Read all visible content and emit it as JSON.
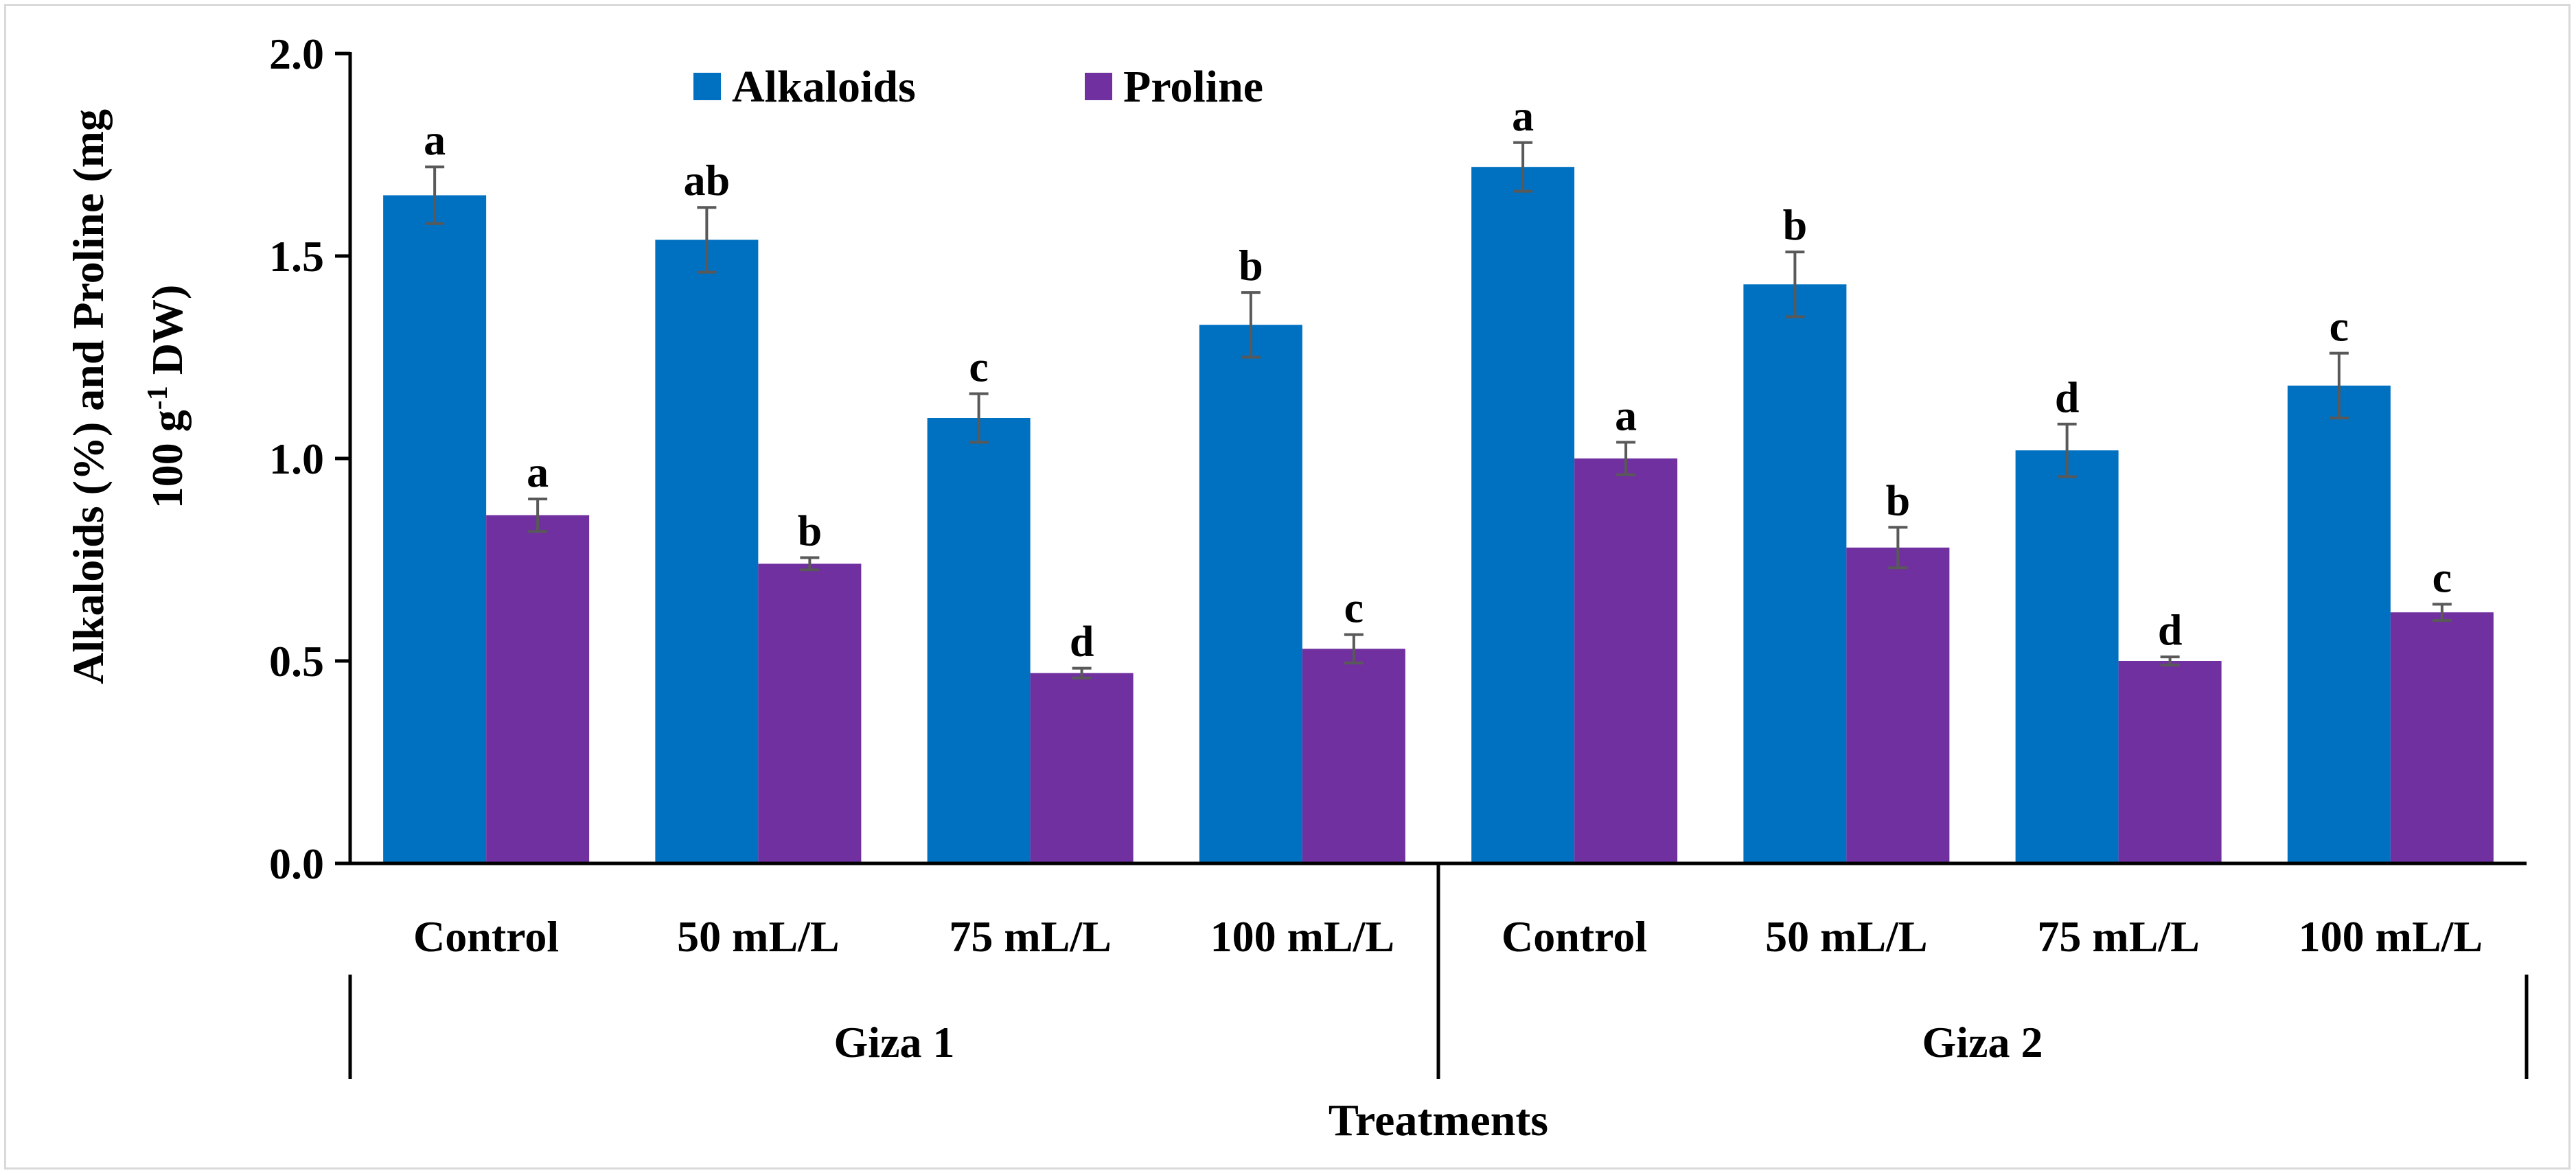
{
  "colors": {
    "alkaloids": "#0070c0",
    "proline": "#7030a0",
    "axis": "#000000",
    "error_bar": "#595959"
  },
  "chart_data": {
    "type": "bar",
    "title": "",
    "ylabel_line1": "Alkaloids  (%) and Proline (mg",
    "ylabel_line2_prefix": "100 g",
    "ylabel_line2_sup": "-1",
    "ylabel_line2_suffix": " DW)",
    "xlabel": "Treatments",
    "ylim": [
      0,
      2.0
    ],
    "yticks": [
      0.0,
      0.5,
      1.0,
      1.5,
      2.0
    ],
    "ytick_labels": [
      "0.0",
      "0.5",
      "1.0",
      "1.5",
      "2.0"
    ],
    "groups": [
      {
        "label": "Giza 1",
        "categories": [
          "Control",
          "50 mL/L",
          "75 mL/L",
          "100 mL/L"
        ]
      },
      {
        "label": "Giza 2",
        "categories": [
          "Control",
          "50 mL/L",
          "75 mL/L",
          "100 mL/L"
        ]
      }
    ],
    "series": [
      {
        "name": "Alkaloids",
        "values": [
          1.65,
          1.54,
          1.1,
          1.33,
          1.72,
          1.43,
          1.02,
          1.18
        ],
        "errors": [
          0.07,
          0.08,
          0.06,
          0.08,
          0.06,
          0.08,
          0.065,
          0.08
        ],
        "labels": [
          "a",
          "ab",
          "c",
          "b",
          "a",
          "b",
          "d",
          "c"
        ]
      },
      {
        "name": "Proline",
        "values": [
          0.86,
          0.74,
          0.47,
          0.53,
          1.0,
          0.78,
          0.5,
          0.62
        ],
        "errors": [
          0.04,
          0.015,
          0.012,
          0.035,
          0.04,
          0.05,
          0.01,
          0.02
        ],
        "labels": [
          "a",
          "b",
          "d",
          "c",
          "a",
          "b",
          "d",
          "c"
        ]
      }
    ],
    "legend": [
      "Alkaloids",
      "Proline"
    ],
    "legend_position": "top-left-inside",
    "grid": false
  }
}
